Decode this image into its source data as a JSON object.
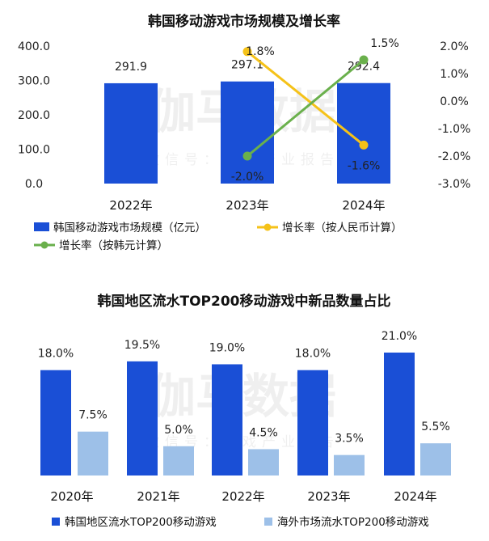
{
  "watermark": {
    "main": "伽马数据",
    "sub1": "微信号：游戏产业报告",
    "sub2": "微信号：游戏产业报告"
  },
  "colors": {
    "bar_blue": "#1a4fd6",
    "bar_light": "#9dc0e8",
    "line_yellow": "#f5c219",
    "line_green": "#6ab04c"
  },
  "chart_data": [
    {
      "type": "bar",
      "title": "韩国移动游戏市场规模及增长率",
      "categories": [
        "2022年",
        "2023年",
        "2024年"
      ],
      "series": [
        {
          "name": "韩国移动游戏市场规模（亿元）",
          "kind": "bar",
          "axis": "left",
          "values": [
            291.9,
            297.1,
            292.4
          ],
          "labels": [
            "291.9",
            "297.1",
            "292.4"
          ]
        },
        {
          "name": "增长率（按人民币计算）",
          "kind": "line",
          "axis": "right",
          "x": [
            "2023年",
            "2024年"
          ],
          "values": [
            1.8,
            -1.6
          ],
          "labels": [
            "1.8%",
            "-1.6%"
          ]
        },
        {
          "name": "增长率（按韩元计算）",
          "kind": "line",
          "axis": "right",
          "x": [
            "2023年",
            "2024年"
          ],
          "values": [
            -2.0,
            1.5
          ],
          "labels": [
            "-2.0%",
            "1.5%"
          ]
        }
      ],
      "left_axis": {
        "ylim": [
          0,
          400
        ],
        "ticks": [
          "400.0",
          "300.0",
          "200.0",
          "100.0",
          "0.0"
        ]
      },
      "right_axis": {
        "ylim": [
          -3.0,
          2.0
        ],
        "ticks": [
          "2.0%",
          "1.0%",
          "0.0%",
          "-1.0%",
          "-2.0%",
          "-3.0%"
        ]
      },
      "legend_placement": "bottom"
    },
    {
      "type": "bar",
      "title": "韩国地区流水TOP200移动游戏中新品数量占比",
      "categories": [
        "2020年",
        "2021年",
        "2022年",
        "2023年",
        "2024年"
      ],
      "series": [
        {
          "name": "韩国地区流水TOP200移动游戏",
          "values": [
            18.0,
            19.5,
            19.0,
            18.0,
            21.0
          ],
          "labels": [
            "18.0%",
            "19.5%",
            "19.0%",
            "18.0%",
            "21.0%"
          ]
        },
        {
          "name": "海外市场流水TOP200移动游戏",
          "values": [
            7.5,
            5.0,
            4.5,
            3.5,
            5.5
          ],
          "labels": [
            "7.5%",
            "5.0%",
            "4.5%",
            "3.5%",
            "5.5%"
          ]
        }
      ],
      "legend_placement": "bottom"
    }
  ]
}
